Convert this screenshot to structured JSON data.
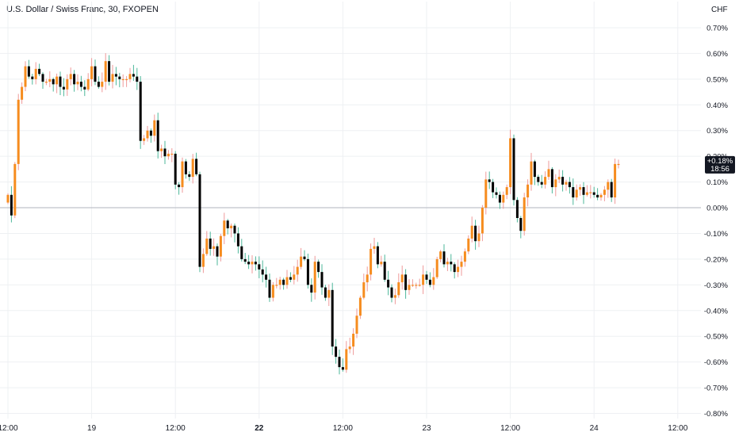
{
  "header": {
    "title": "U.S. Dollar / Swiss Franc, 30, FXOPEN",
    "currency": "CHF"
  },
  "badge": {
    "value": "+0.18%",
    "countdown": "18:56",
    "level": 0.17
  },
  "colors": {
    "up": "#f68c1e",
    "down": "#000000",
    "wick_up": "#ef9a9a",
    "wick_down": "#4cb79a",
    "grid": "#eef0f3",
    "baseline": "#b2b5be"
  },
  "chart_data": {
    "type": "candlestick",
    "y_unit": "%",
    "ylim": [
      -0.82,
      0.74
    ],
    "y_ticks": [
      "0.70%",
      "0.60%",
      "0.50%",
      "0.40%",
      "0.30%",
      "0.20%",
      "0.10%",
      "0.00%",
      "-0.10%",
      "-0.20%",
      "-0.30%",
      "-0.40%",
      "-0.50%",
      "-0.60%",
      "-0.70%",
      "-0.80%"
    ],
    "y_tick_values": [
      0.7,
      0.6,
      0.5,
      0.4,
      0.3,
      0.2,
      0.1,
      0.0,
      -0.1,
      -0.2,
      -0.3,
      -0.4,
      -0.5,
      -0.6,
      -0.7,
      -0.8
    ],
    "baseline": 0.0,
    "x_ticks": [
      {
        "label": "12:00",
        "index": 0,
        "bold": false
      },
      {
        "label": "19",
        "index": 24,
        "bold": false
      },
      {
        "label": "12:00",
        "index": 48,
        "bold": false
      },
      {
        "label": "22",
        "index": 72,
        "bold": true
      },
      {
        "label": "12:00",
        "index": 96,
        "bold": false
      },
      {
        "label": "23",
        "index": 120,
        "bold": false
      },
      {
        "label": "12:00",
        "index": 144,
        "bold": false
      },
      {
        "label": "24",
        "index": 168,
        "bold": false
      },
      {
        "label": "12:00",
        "index": 192,
        "bold": false
      }
    ],
    "closes": [
      0.05,
      -0.03,
      0.17,
      0.42,
      0.47,
      0.55,
      0.51,
      0.5,
      0.54,
      0.52,
      0.49,
      0.49,
      0.5,
      0.48,
      0.51,
      0.47,
      0.46,
      0.5,
      0.52,
      0.48,
      0.49,
      0.47,
      0.46,
      0.5,
      0.55,
      0.49,
      0.47,
      0.49,
      0.57,
      0.49,
      0.52,
      0.51,
      0.5,
      0.5,
      0.5,
      0.52,
      0.51,
      0.49,
      0.26,
      0.27,
      0.3,
      0.28,
      0.34,
      0.22,
      0.23,
      0.2,
      0.21,
      0.21,
      0.09,
      0.08,
      0.18,
      0.13,
      0.12,
      0.19,
      0.13,
      -0.23,
      -0.18,
      -0.12,
      -0.16,
      -0.15,
      -0.19,
      -0.11,
      -0.05,
      -0.08,
      -0.07,
      -0.1,
      -0.15,
      -0.2,
      -0.21,
      -0.22,
      -0.21,
      -0.22,
      -0.24,
      -0.26,
      -0.28,
      -0.35,
      -0.3,
      -0.3,
      -0.28,
      -0.3,
      -0.27,
      -0.28,
      -0.26,
      -0.23,
      -0.19,
      -0.2,
      -0.3,
      -0.33,
      -0.21,
      -0.25,
      -0.31,
      -0.35,
      -0.32,
      -0.54,
      -0.58,
      -0.62,
      -0.63,
      -0.55,
      -0.54,
      -0.49,
      -0.42,
      -0.35,
      -0.29,
      -0.26,
      -0.16,
      -0.15,
      -0.22,
      -0.21,
      -0.28,
      -0.31,
      -0.35,
      -0.34,
      -0.29,
      -0.26,
      -0.32,
      -0.3,
      -0.3,
      -0.3,
      -0.3,
      -0.26,
      -0.28,
      -0.3,
      -0.27,
      -0.2,
      -0.17,
      -0.22,
      -0.21,
      -0.22,
      -0.25,
      -0.23,
      -0.21,
      -0.17,
      -0.12,
      -0.07,
      -0.13,
      -0.1,
      0.0,
      0.11,
      0.1,
      0.06,
      0.05,
      0.02,
      0.05,
      0.08,
      0.27,
      0.03,
      -0.04,
      -0.09,
      0.04,
      0.09,
      0.18,
      0.12,
      0.1,
      0.09,
      0.12,
      0.15,
      0.08,
      0.11,
      0.12,
      0.09,
      0.1,
      0.08,
      0.04,
      0.07,
      0.08,
      0.05,
      0.06,
      0.06,
      0.05,
      0.04,
      0.05,
      0.07,
      0.1,
      0.04,
      0.17,
      0.17
    ]
  }
}
